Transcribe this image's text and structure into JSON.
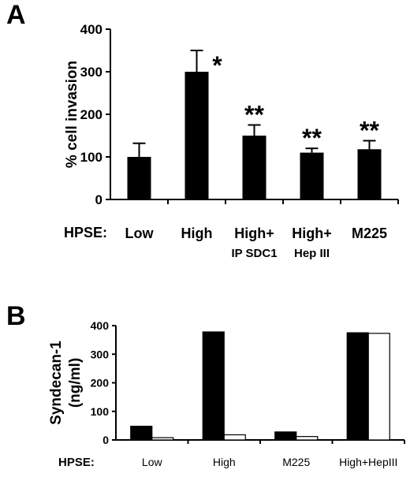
{
  "chart_data": [
    {
      "panel": "A",
      "type": "bar",
      "ylabel": "% cell invasion",
      "category_axis_label": "HPSE:",
      "categories": [
        "Low",
        "High",
        "High+",
        "High+",
        "M225"
      ],
      "category_sublabels": [
        "",
        "",
        "IP SDC1",
        "Hep III",
        ""
      ],
      "values": [
        100,
        300,
        150,
        110,
        118
      ],
      "errors": [
        32,
        50,
        25,
        10,
        20
      ],
      "significance": [
        "",
        "*",
        "**",
        "**",
        "**"
      ],
      "ylim": [
        0,
        400
      ],
      "yticks": [
        0,
        100,
        200,
        300,
        400
      ],
      "bar_color": "#000000"
    },
    {
      "panel": "B",
      "type": "bar",
      "ylabel": "Syndecan-1 (ng/ml)",
      "ylabel_lines": [
        "Syndecan-1",
        "(ng/ml)"
      ],
      "category_axis_label": "HPSE:",
      "categories": [
        "Low",
        "High",
        "M225",
        "High+HepIII"
      ],
      "series": [
        {
          "values": [
            48,
            378,
            28,
            375
          ],
          "color": "#000000"
        },
        {
          "values": [
            8,
            18,
            12,
            373
          ],
          "color": "#ffffff"
        }
      ],
      "ylim": [
        0,
        400
      ],
      "yticks": [
        0,
        100,
        200,
        300,
        400
      ]
    }
  ]
}
